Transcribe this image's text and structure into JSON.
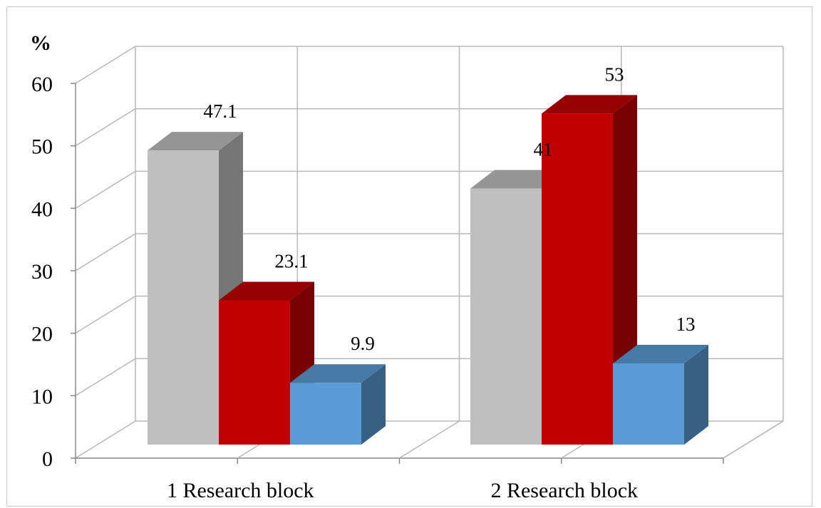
{
  "chart_data": {
    "type": "bar",
    "y_unit_label": "%",
    "ylim": [
      0,
      60
    ],
    "yticks": [
      "0",
      "10",
      "20",
      "30",
      "40",
      "50",
      "60"
    ],
    "categories": [
      "1 Research block",
      "2 Research block"
    ],
    "series": [
      {
        "color": "#bfbfbf",
        "values": [
          47.1,
          41
        ]
      },
      {
        "color": "#c00000",
        "values": [
          23.1,
          53
        ]
      },
      {
        "color": "#5b9bd5",
        "values": [
          9.9,
          13
        ]
      }
    ],
    "data_labels": [
      [
        "47.1",
        "41"
      ],
      [
        "23.1",
        "53"
      ],
      [
        "9.9",
        "13"
      ]
    ],
    "grid": true,
    "legend": "none"
  }
}
